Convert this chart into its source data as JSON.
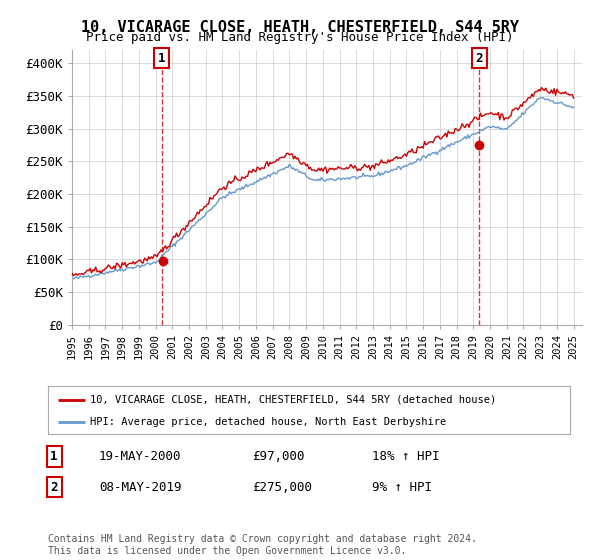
{
  "title": "10, VICARAGE CLOSE, HEATH, CHESTERFIELD, S44 5RY",
  "subtitle": "Price paid vs. HM Land Registry's House Price Index (HPI)",
  "ylim": [
    0,
    420000
  ],
  "yticks": [
    0,
    50000,
    100000,
    150000,
    200000,
    250000,
    300000,
    350000,
    400000
  ],
  "ytick_labels": [
    "£0",
    "£50K",
    "£100K",
    "£150K",
    "£200K",
    "£250K",
    "£300K",
    "£350K",
    "£400K"
  ],
  "bg_color": "#ffffff",
  "grid_color": "#cccccc",
  "line1_color": "#cc0000",
  "line2_color": "#6699cc",
  "purchase1_x": 2000.38,
  "purchase1_y": 97000,
  "purchase2_x": 2019.36,
  "purchase2_y": 275000,
  "legend_line1": "10, VICARAGE CLOSE, HEATH, CHESTERFIELD, S44 5RY (detached house)",
  "legend_line2": "HPI: Average price, detached house, North East Derbyshire",
  "annotation1_label": "1",
  "annotation1_date": "19-MAY-2000",
  "annotation1_price": "£97,000",
  "annotation1_hpi": "18% ↑ HPI",
  "annotation2_label": "2",
  "annotation2_date": "08-MAY-2019",
  "annotation2_price": "£275,000",
  "annotation2_hpi": "9% ↑ HPI",
  "footnote": "Contains HM Land Registry data © Crown copyright and database right 2024.\nThis data is licensed under the Open Government Licence v3.0.",
  "xmin": 1995,
  "xmax": 2025.5
}
